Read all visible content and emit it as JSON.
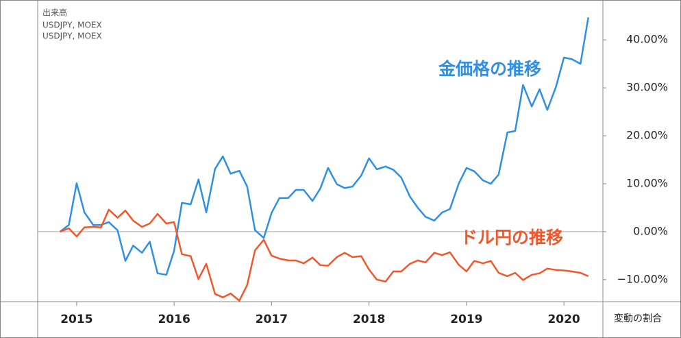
{
  "chart_data": {
    "type": "line",
    "indicator_labels": [
      "出来高",
      "USDJPY, MOEX",
      "USDJPY, MOEX"
    ],
    "y_axis_label": "変動の割合",
    "x": [
      2014.83,
      2014.92,
      2015,
      2015.08,
      2015.17,
      2015.25,
      2015.33,
      2015.42,
      2015.5,
      2015.58,
      2015.67,
      2015.75,
      2015.83,
      2015.92,
      2016,
      2016.08,
      2016.17,
      2016.25,
      2016.33,
      2016.42,
      2016.5,
      2016.58,
      2016.67,
      2016.75,
      2016.83,
      2016.92,
      2017,
      2017.08,
      2017.17,
      2017.25,
      2017.33,
      2017.42,
      2017.5,
      2017.58,
      2017.67,
      2017.75,
      2017.83,
      2017.92,
      2018,
      2018.08,
      2018.17,
      2018.25,
      2018.33,
      2018.42,
      2018.5,
      2018.58,
      2018.67,
      2018.75,
      2018.83,
      2018.92,
      2019,
      2019.08,
      2019.17,
      2019.25,
      2019.33,
      2019.42,
      2019.5,
      2019.58,
      2019.67,
      2019.75,
      2019.83,
      2019.92,
      2020,
      2020.08,
      2020.17,
      2020.25
    ],
    "series": [
      {
        "name": "金価格の推移",
        "color": "#2f8fe3",
        "values": [
          0,
          1.4,
          10.1,
          4,
          1.4,
          1.4,
          2,
          0.3,
          -6.1,
          -2.9,
          -4.4,
          -2.1,
          -8.7,
          -9,
          -4,
          6,
          5.7,
          10.9,
          4,
          13.1,
          15.7,
          12.1,
          12.7,
          9.4,
          0.3,
          -1.3,
          3.9,
          7,
          7,
          8.7,
          8.7,
          6.4,
          9,
          13.3,
          9.9,
          9.1,
          9.4,
          11.7,
          15.3,
          13,
          13.6,
          12.9,
          11.3,
          7.3,
          5,
          3.1,
          2.3,
          4,
          4.7,
          10,
          13.3,
          12.6,
          10.7,
          10,
          11.9,
          20.7,
          21,
          30.6,
          26.1,
          29.7,
          25.4,
          30.3,
          36.3,
          36,
          35,
          44.7
        ]
      },
      {
        "name": "ドル円の推移",
        "color": "#f0572a",
        "values": [
          0,
          0.7,
          -1,
          0.9,
          1,
          0.9,
          4.6,
          2.9,
          4.4,
          2.3,
          1,
          1.7,
          3.7,
          1.7,
          2,
          -4.7,
          -5.1,
          -9.9,
          -6.7,
          -13,
          -13.7,
          -12.9,
          -14.4,
          -11.1,
          -3.9,
          -1.7,
          -5,
          -5.6,
          -6,
          -6,
          -6.6,
          -5.4,
          -7,
          -7.1,
          -5.3,
          -4.4,
          -5.3,
          -5.1,
          -7.9,
          -10,
          -10.4,
          -8.3,
          -8.3,
          -6.7,
          -6,
          -6.4,
          -4.4,
          -4.9,
          -4.3,
          -6.9,
          -8.3,
          -6.1,
          -6.6,
          -6.1,
          -8.6,
          -9.3,
          -8.6,
          -10.1,
          -9,
          -8.7,
          -7.7,
          -8,
          -8.1,
          -8.3,
          -8.6,
          -9.3
        ]
      }
    ],
    "xlim": [
      2014.6,
      2020.4
    ],
    "xticks": [
      2015,
      2016,
      2017,
      2018,
      2019,
      2020
    ],
    "ylim": [
      -14.6,
      47.6
    ],
    "yticks": [
      {
        "value": -10,
        "label": "−10.00%"
      },
      {
        "value": 0,
        "label": "0.00%"
      },
      {
        "value": 10,
        "label": "10.00%"
      },
      {
        "value": 20,
        "label": "20.00%"
      },
      {
        "value": 30,
        "label": "30.00%"
      },
      {
        "value": 40,
        "label": "40.00%"
      }
    ]
  }
}
